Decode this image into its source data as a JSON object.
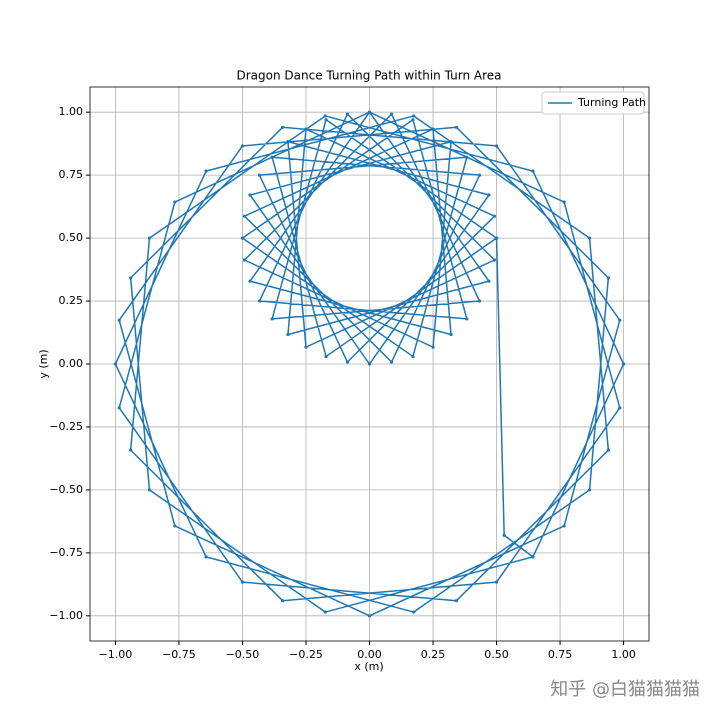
{
  "chart_data": {
    "type": "line",
    "title": "Dragon Dance Turning Path within Turn Area",
    "x_label": "x (m)",
    "y_label": "y (m)",
    "grid": true,
    "legend": "upper right",
    "watermark": "知乎 @白猫猫猫猫",
    "xlim": [
      -1.1,
      1.1
    ],
    "ylim": [
      -1.1,
      1.1
    ],
    "xticks": [
      {
        "value": -1,
        "label": "−1.00"
      },
      {
        "value": -0.75,
        "label": "−0.75"
      },
      {
        "value": -0.5,
        "label": "−0.50"
      },
      {
        "value": -0.25,
        "label": "−0.25"
      },
      {
        "value": 0,
        "label": "0.00"
      },
      {
        "value": 0.25,
        "label": "0.25"
      },
      {
        "value": 0.5,
        "label": "0.50"
      },
      {
        "value": 0.75,
        "label": "0.75"
      },
      {
        "value": 1,
        "label": "1.00"
      }
    ],
    "yticks": [
      {
        "value": -1,
        "label": "−1.00"
      },
      {
        "value": -0.75,
        "label": "−0.75"
      },
      {
        "value": -0.5,
        "label": "−0.50"
      },
      {
        "value": -0.25,
        "label": "−0.25"
      },
      {
        "value": 0,
        "label": "0.00"
      },
      {
        "value": 0.25,
        "label": "0.25"
      },
      {
        "value": 0.5,
        "label": "0.50"
      },
      {
        "value": 0.75,
        "label": "0.75"
      },
      {
        "value": 1,
        "label": "1.00"
      }
    ],
    "series": [
      {
        "name": "Turning Path",
        "color": "#1f77b4",
        "x": [
          0.5,
          -0.171,
          -0.383,
          0.433,
          0.087,
          -0.492,
          0.25,
          0.321,
          -0.47,
          0,
          0.47,
          -0.321,
          -0.25,
          0.492,
          -0.087,
          -0.433,
          0.383,
          0.171,
          -0.5,
          0.171,
          0.383,
          -0.433,
          -0.087,
          0.492,
          -0.25,
          -0.321,
          0.47,
          0,
          -0.47,
          0.321,
          0.25,
          -0.492,
          0.087,
          0.433,
          -0.383,
          -0.171,
          0.5,
          0.53,
          0.643,
          1,
          0.643,
          -0.174,
          -0.866,
          -0.94,
          -0.342,
          0.5,
          0.985,
          0.766,
          0,
          -0.766,
          -0.985,
          -0.5,
          0.342,
          0.94,
          0.866,
          0.174,
          -0.643,
          -1,
          -0.643,
          0.174,
          0.866,
          0.94,
          0.342,
          -0.5,
          -0.985,
          -0.766,
          0,
          0.766,
          0.985,
          0.5,
          -0.342,
          -0.94,
          -0.866,
          -0.174,
          0.643
        ],
        "values": [
          0.5,
          0.97,
          0.179,
          0.25,
          0.992,
          0.413,
          0.067,
          0.883,
          0.671,
          0,
          0.671,
          0.883,
          0.067,
          0.413,
          0.992,
          0.25,
          0.179,
          0.97,
          0.5,
          0.03,
          0.821,
          0.75,
          0.008,
          0.587,
          0.933,
          0.117,
          0.329,
          1,
          0.329,
          0.117,
          0.933,
          0.587,
          0.008,
          0.75,
          0.821,
          0.03,
          0.5,
          -0.68,
          -0.766,
          0,
          0.766,
          0.985,
          0.5,
          -0.342,
          -0.94,
          -0.866,
          -0.174,
          0.643,
          1,
          0.643,
          -0.174,
          -0.866,
          -0.94,
          -0.342,
          0.5,
          0.985,
          0.766,
          0,
          -0.766,
          -0.985,
          -0.5,
          0.342,
          0.94,
          0.866,
          0.174,
          -0.643,
          -1,
          -0.643,
          0.174,
          0.866,
          0.94,
          0.342,
          -0.5,
          -0.985,
          -0.766
        ]
      }
    ]
  }
}
